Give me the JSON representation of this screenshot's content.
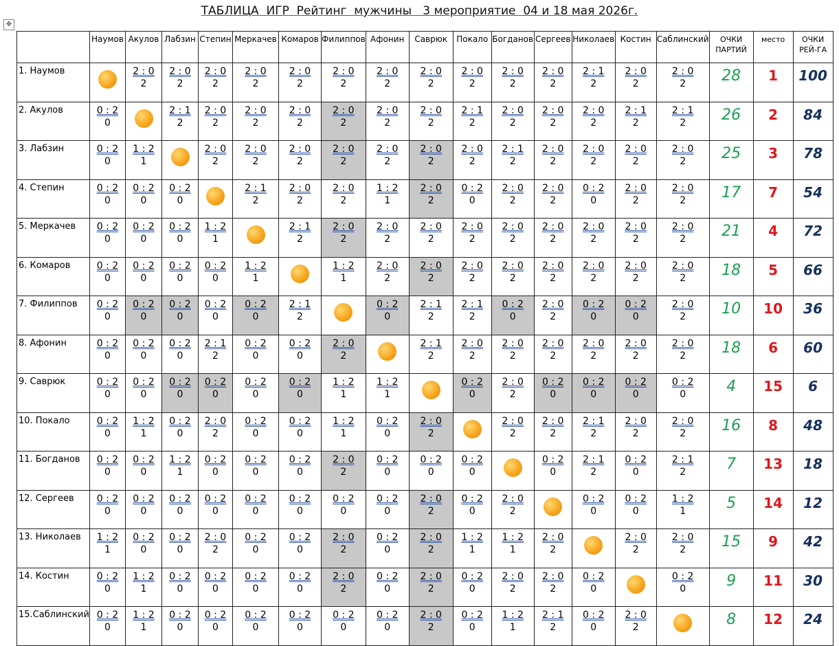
{
  "title": "ТАБЛИЦА  ИГР  Рейтинг  мужчины   3 мероприятие  04 и 18 мая 2026г.",
  "columns": [
    "Наумов",
    "Акулов",
    "Лабзин",
    "Степин",
    "Меркачев",
    "Комаров",
    "Филиппов",
    "Афонин",
    "Саврюк",
    "Покало",
    "Богданов",
    "Сергеев",
    "Николаев",
    "Костин",
    "Саблинский"
  ],
  "total_header": "ОЧКИ ПАРТИЙ",
  "place_header": "место",
  "rating_header": "ОЧКИ РЕЙ-ГА",
  "rows": [
    {
      "label": "1. Наумов",
      "scores": [
        null,
        "2 : 0",
        "2 : 0",
        "2 : 0",
        "2 : 0",
        "2 : 0",
        "2 : 0",
        "2 : 0",
        "2 : 0",
        "2 : 0",
        "2 : 0",
        "2 : 0",
        "2 : 1",
        "2 : 0",
        "2 : 0"
      ],
      "points": [
        null,
        2,
        2,
        2,
        2,
        2,
        2,
        2,
        2,
        2,
        2,
        2,
        2,
        2,
        2
      ],
      "shaded": [],
      "total": 28,
      "place": 1,
      "rating": 100
    },
    {
      "label": "2. Акулов",
      "scores": [
        "0 : 2",
        null,
        "2 : 1",
        "2 : 0",
        "2 : 0",
        "2 : 0",
        "2 : 0",
        "2 : 0",
        "2 : 0",
        "2 : 1",
        "2 : 0",
        "2 : 0",
        "2 : 0",
        "2 : 1",
        "2 : 1"
      ],
      "points": [
        0,
        null,
        2,
        2,
        2,
        2,
        2,
        2,
        2,
        2,
        2,
        2,
        2,
        2,
        2
      ],
      "shaded": [
        6
      ],
      "total": 26,
      "place": 2,
      "rating": 84
    },
    {
      "label": "3. Лабзин",
      "scores": [
        "0 : 2",
        "1 : 2",
        null,
        "2 : 0",
        "2 : 0",
        "2 : 0",
        "2 : 0",
        "2 : 0",
        "2 : 0",
        "2 : 0",
        "2 : 1",
        "2 : 0",
        "2 : 0",
        "2 : 0",
        "2 : 0"
      ],
      "points": [
        0,
        1,
        null,
        2,
        2,
        2,
        2,
        2,
        2,
        2,
        2,
        2,
        2,
        2,
        2
      ],
      "shaded": [
        6,
        8
      ],
      "total": 25,
      "place": 3,
      "rating": 78
    },
    {
      "label": "4. Степин",
      "scores": [
        "0 : 2",
        "0 : 2",
        "0 : 2",
        null,
        "2 : 1",
        "2 : 0",
        "2 : 0",
        "1 : 2",
        "2 : 0",
        "0 : 2",
        "2 : 0",
        "2 : 0",
        "0 : 2",
        "2 : 0",
        "2 : 0"
      ],
      "points": [
        0,
        0,
        0,
        null,
        2,
        2,
        2,
        1,
        2,
        0,
        2,
        2,
        0,
        2,
        2
      ],
      "shaded": [
        8
      ],
      "total": 17,
      "place": 7,
      "rating": 54
    },
    {
      "label": "5. Меркачев",
      "scores": [
        "0 : 2",
        "0 : 2",
        "0 : 2",
        "1 : 2",
        null,
        "2 : 1",
        "2 : 0",
        "2 : 0",
        "2 : 0",
        "2 : 0",
        "2 : 0",
        "2 : 0",
        "2 : 0",
        "2 : 0",
        "2 : 0"
      ],
      "points": [
        0,
        0,
        0,
        1,
        null,
        2,
        2,
        2,
        2,
        2,
        2,
        2,
        2,
        2,
        2
      ],
      "shaded": [
        6
      ],
      "total": 21,
      "place": 4,
      "rating": 72
    },
    {
      "label": "6. Комаров",
      "scores": [
        "0 : 2",
        "0 : 2",
        "0 : 2",
        "0 : 2",
        "1 : 2",
        null,
        "1 : 2",
        "2 : 0",
        "2 : 0",
        "2 : 0",
        "2 : 0",
        "2 : 0",
        "2 : 0",
        "2 : 0",
        "2 : 0"
      ],
      "points": [
        0,
        0,
        0,
        0,
        1,
        null,
        1,
        2,
        2,
        2,
        2,
        2,
        2,
        2,
        2
      ],
      "shaded": [
        8
      ],
      "total": 18,
      "place": 5,
      "rating": 66
    },
    {
      "label": "7. Филиппов",
      "scores": [
        "0 : 2",
        "0 : 2",
        "0 : 2",
        "0 : 2",
        "0 : 2",
        "2 : 1",
        null,
        "0 : 2",
        "2 : 1",
        "2 : 1",
        "0 : 2",
        "2 : 0",
        "0 : 2",
        "0 : 2",
        "2 : 0"
      ],
      "points": [
        0,
        0,
        0,
        0,
        0,
        2,
        null,
        0,
        2,
        2,
        0,
        2,
        0,
        0,
        2
      ],
      "shaded": [
        1,
        2,
        4,
        7,
        10,
        12,
        13
      ],
      "total": 10,
      "place": 10,
      "rating": 36
    },
    {
      "label": "8. Афонин",
      "scores": [
        "0 : 2",
        "0 : 2",
        "0 : 2",
        "2 : 1",
        "0 : 2",
        "0 : 2",
        "2 : 0",
        null,
        "2 : 1",
        "2 : 0",
        "2 : 0",
        "2 : 0",
        "2 : 0",
        "2 : 0",
        "2 : 0"
      ],
      "points": [
        0,
        0,
        0,
        2,
        0,
        0,
        2,
        null,
        2,
        2,
        2,
        2,
        2,
        2,
        2
      ],
      "shaded": [
        6
      ],
      "total": 18,
      "place": 6,
      "rating": 60
    },
    {
      "label": "9.  Саврюк",
      "scores": [
        "0 : 2",
        "0 : 2",
        "0 : 2",
        "0 : 2",
        "0 : 2",
        "0 : 2",
        "1 : 2",
        "1 : 2",
        null,
        "0 : 2",
        "2 : 0",
        "0 : 2",
        "0 : 2",
        "0 : 2",
        "0 : 2"
      ],
      "points": [
        0,
        0,
        0,
        0,
        0,
        0,
        1,
        1,
        null,
        0,
        2,
        0,
        0,
        0,
        0
      ],
      "shaded": [
        2,
        3,
        5,
        9,
        11,
        12,
        13
      ],
      "total": 4,
      "place": 15,
      "rating": 6
    },
    {
      "label": "10.  Покало",
      "scores": [
        "0 : 2",
        "1 : 2",
        "0 : 2",
        "2 : 0",
        "0 : 2",
        "0 : 2",
        "1 : 2",
        "0 : 2",
        "2 : 0",
        null,
        "2 : 0",
        "2 : 0",
        "2 : 1",
        "2 : 0",
        "2 : 0"
      ],
      "points": [
        0,
        1,
        0,
        2,
        0,
        0,
        1,
        0,
        2,
        null,
        2,
        2,
        2,
        2,
        2
      ],
      "shaded": [
        8
      ],
      "total": 16,
      "place": 8,
      "rating": 48
    },
    {
      "label": "11. Богданов",
      "scores": [
        "0 : 2",
        "0 : 2",
        "1 : 2",
        "0 : 2",
        "0 : 2",
        "0 : 2",
        "2 : 0",
        "0 : 2",
        "0 : 2",
        "0 : 2",
        null,
        "0 : 2",
        "2 : 1",
        "0 : 2",
        "2 : 1"
      ],
      "points": [
        0,
        0,
        1,
        0,
        0,
        0,
        2,
        0,
        0,
        0,
        null,
        0,
        2,
        0,
        2
      ],
      "shaded": [
        6
      ],
      "total": 7,
      "place": 13,
      "rating": 18
    },
    {
      "label": "12. Сергеев",
      "scores": [
        "0 : 2",
        "0 : 2",
        "0 : 2",
        "0 : 2",
        "0 : 2",
        "0 : 2",
        "0 : 2",
        "0 : 2",
        "2 : 0",
        "0 : 2",
        "2 : 0",
        null,
        "0 : 2",
        "0 : 2",
        "1 : 2"
      ],
      "points": [
        0,
        0,
        0,
        0,
        0,
        0,
        0,
        0,
        2,
        0,
        2,
        null,
        0,
        0,
        1
      ],
      "shaded": [
        8
      ],
      "total": 5,
      "place": 14,
      "rating": 12
    },
    {
      "label": "13. Николаев",
      "scores": [
        "1 : 2",
        "0 : 2",
        "0 : 2",
        "2 : 0",
        "0 : 2",
        "0 : 2",
        "2 : 0",
        "0 : 2",
        "2 : 0",
        "1 : 2",
        "1 : 2",
        "2 : 0",
        null,
        "2 : 0",
        "2 : 0"
      ],
      "points": [
        1,
        0,
        0,
        2,
        0,
        0,
        2,
        0,
        2,
        1,
        1,
        2,
        null,
        2,
        2
      ],
      "shaded": [
        6,
        8
      ],
      "total": 15,
      "place": 9,
      "rating": 42
    },
    {
      "label": "14. Костин",
      "scores": [
        "0 : 2",
        "1 : 2",
        "0 : 2",
        "0 : 2",
        "0 : 2",
        "0 : 2",
        "2 : 0",
        "0 : 2",
        "2 : 0",
        "0 : 2",
        "2 : 0",
        "2 : 0",
        "0 : 2",
        null,
        "0 : 2"
      ],
      "points": [
        0,
        1,
        0,
        0,
        0,
        0,
        2,
        0,
        2,
        0,
        2,
        2,
        0,
        null,
        0
      ],
      "shaded": [
        6,
        8
      ],
      "total": 9,
      "place": 11,
      "rating": 30
    },
    {
      "label": "15.Саблинский",
      "scores": [
        "0 : 2",
        "1 : 2",
        "0 : 2",
        "0 : 2",
        "0 : 2",
        "0 : 2",
        "0 : 2",
        "0 : 2",
        "2 : 0",
        "0 : 2",
        "1 : 2",
        "2 : 1",
        "0 : 2",
        "2 : 0",
        null
      ],
      "points": [
        0,
        1,
        0,
        0,
        0,
        0,
        0,
        0,
        2,
        0,
        1,
        2,
        0,
        2,
        null
      ],
      "shaded": [
        8
      ],
      "total": 8,
      "place": 12,
      "rating": 24
    }
  ]
}
